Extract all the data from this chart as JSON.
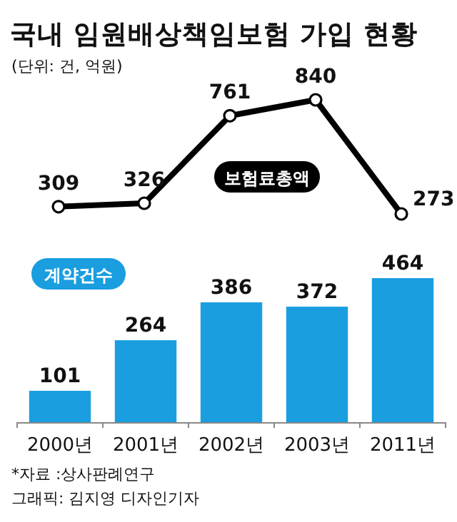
{
  "chart_data": [
    {
      "type": "line",
      "title": "국내 임원배상책임보험 가입 현황",
      "subtitle": "(단위: 건, 억원)",
      "categories": [
        null,
        null,
        null,
        null,
        null
      ],
      "series": [
        {
          "name": "보험료총액",
          "color": "#000000",
          "values": [
            309,
            326,
            761,
            840,
            273
          ]
        }
      ],
      "marker": "circle",
      "data_labels": true
    },
    {
      "type": "bar",
      "categories": [
        "2000년",
        "2001년",
        "2002년",
        "2003년",
        "2011년"
      ],
      "series": [
        {
          "name": "계약건수",
          "color": "#1a9ee0",
          "values": [
            101,
            264,
            386,
            372,
            464
          ]
        }
      ],
      "data_labels": true,
      "annotations": [
        "*자료 :상사판례연구",
        "그래픽: 김지영 디자인기자"
      ]
    }
  ]
}
